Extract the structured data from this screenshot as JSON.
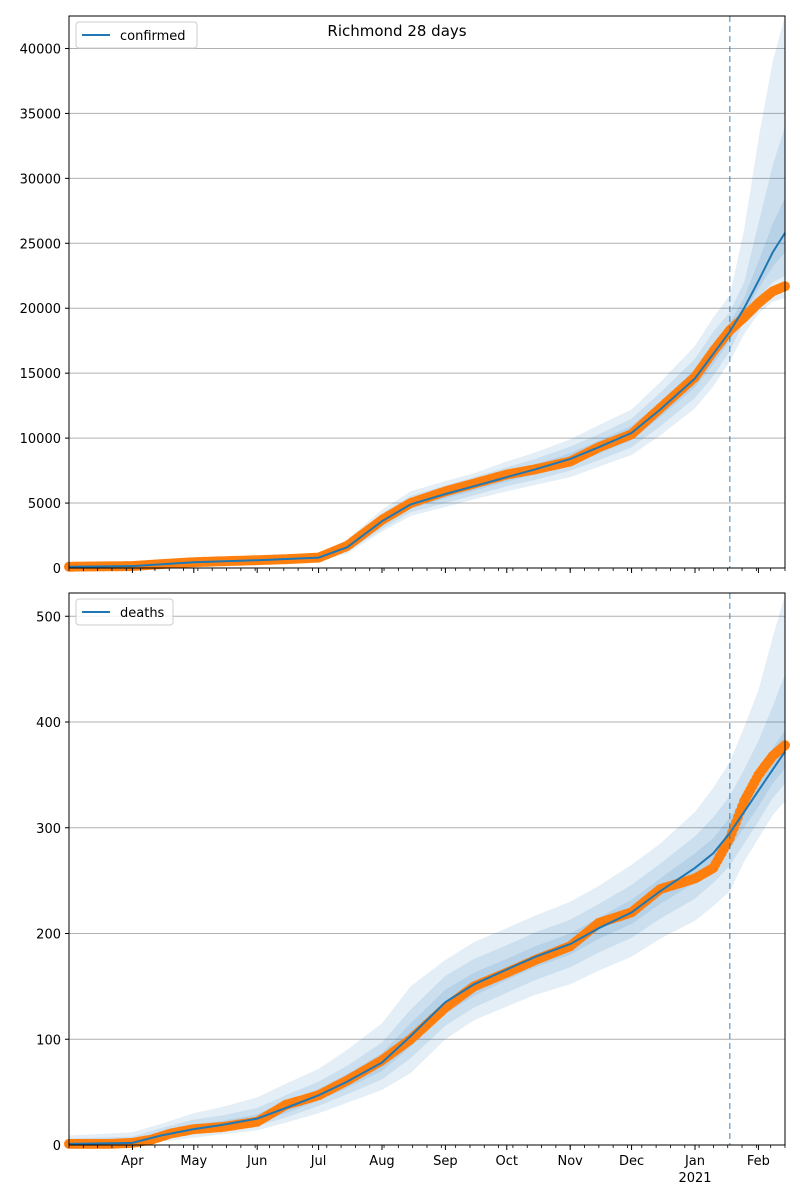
{
  "title": "Richmond 28 days",
  "colors": {
    "model_line": "#1f77b4",
    "observed": "#ff7f0e",
    "band": "#1f77b4",
    "grid": "#b0b0b0",
    "forecast_marker": "#1f77b4"
  },
  "x_axis": {
    "start": "2020-03-01",
    "end": "2021-02-14",
    "tick_labels": [
      {
        "date": "2020-04-01",
        "label": "Apr"
      },
      {
        "date": "2020-05-01",
        "label": "May"
      },
      {
        "date": "2020-06-01",
        "label": "Jun"
      },
      {
        "date": "2020-07-01",
        "label": "Jul"
      },
      {
        "date": "2020-08-01",
        "label": "Aug"
      },
      {
        "date": "2020-09-01",
        "label": "Sep"
      },
      {
        "date": "2020-10-01",
        "label": "Oct"
      },
      {
        "date": "2020-11-01",
        "label": "Nov"
      },
      {
        "date": "2020-12-01",
        "label": "Dec"
      },
      {
        "date": "2021-01-01",
        "label": "Jan"
      },
      {
        "date": "2021-02-01",
        "label": "Feb"
      }
    ],
    "year_label": {
      "date": "2021-01-01",
      "label": "2021"
    },
    "forecast_start": "2021-01-18"
  },
  "chart_data": [
    {
      "type": "line",
      "legend": {
        "label": "confirmed",
        "position": "upper-left"
      },
      "grid": true,
      "ylim": [
        0,
        42500
      ],
      "yticks": [
        0,
        5000,
        10000,
        15000,
        20000,
        25000,
        30000,
        35000,
        40000
      ],
      "observed": {
        "x": [
          "2020-03-01",
          "2020-03-15",
          "2020-04-01",
          "2020-04-15",
          "2020-05-01",
          "2020-05-15",
          "2020-06-01",
          "2020-06-15",
          "2020-07-01",
          "2020-07-15",
          "2020-08-01",
          "2020-08-15",
          "2020-09-01",
          "2020-09-15",
          "2020-10-01",
          "2020-10-15",
          "2020-11-01",
          "2020-11-15",
          "2020-12-01",
          "2020-12-15",
          "2021-01-01",
          "2021-01-10",
          "2021-01-18",
          "2021-01-25",
          "2021-02-01",
          "2021-02-08",
          "2021-02-14"
        ],
        "y": [
          100,
          120,
          150,
          300,
          450,
          520,
          600,
          680,
          800,
          1700,
          3700,
          5000,
          5900,
          6500,
          7200,
          7600,
          8200,
          9300,
          10300,
          12300,
          14700,
          16700,
          18300,
          19300,
          20400,
          21300,
          21700
        ]
      },
      "model": {
        "x": [
          "2020-03-01",
          "2020-04-01",
          "2020-05-01",
          "2020-06-01",
          "2020-07-01",
          "2020-07-15",
          "2020-08-01",
          "2020-08-15",
          "2020-09-01",
          "2020-09-15",
          "2020-10-01",
          "2020-10-15",
          "2020-11-01",
          "2020-11-15",
          "2020-12-01",
          "2020-12-15",
          "2021-01-01",
          "2021-01-10",
          "2021-01-18",
          "2021-01-25",
          "2021-02-01",
          "2021-02-08",
          "2021-02-14"
        ],
        "y": [
          100,
          150,
          450,
          600,
          800,
          1600,
          3600,
          4900,
          5700,
          6300,
          7000,
          7600,
          8400,
          9300,
          10400,
          12200,
          14600,
          16500,
          18200,
          20000,
          22100,
          24300,
          25800
        ]
      },
      "bands": [
        {
          "level": "outer",
          "lower": [
            0,
            0,
            300,
            450,
            600,
            1100,
            2800,
            4000,
            4700,
            5300,
            5900,
            6400,
            7000,
            7800,
            8700,
            10200,
            12300,
            14000,
            15900,
            18000,
            19600,
            20500,
            20800
          ],
          "upper": [
            250,
            350,
            700,
            850,
            1100,
            2200,
            4500,
            5900,
            6700,
            7300,
            8200,
            8900,
            9900,
            11000,
            12200,
            14300,
            17100,
            19300,
            21000,
            26000,
            33000,
            39000,
            42500
          ]
        },
        {
          "level": "middle",
          "lower": [
            50,
            50,
            350,
            500,
            650,
            1250,
            3000,
            4300,
            5000,
            5600,
            6300,
            6800,
            7500,
            8300,
            9300,
            10900,
            13100,
            14800,
            16700,
            19000,
            20800,
            22000,
            22500
          ],
          "upper": [
            180,
            260,
            600,
            750,
            980,
            1950,
            4200,
            5550,
            6350,
            7000,
            7750,
            8400,
            9350,
            10300,
            11500,
            13500,
            16100,
            18200,
            19700,
            22000,
            26500,
            31000,
            34000
          ]
        },
        {
          "level": "inner",
          "lower": [
            80,
            100,
            400,
            550,
            720,
            1400,
            3250,
            4600,
            5350,
            5950,
            6650,
            7200,
            7950,
            8800,
            9850,
            11600,
            13900,
            15700,
            17500,
            19500,
            21500,
            23200,
            24300
          ],
          "upper": [
            130,
            200,
            500,
            650,
            880,
            1800,
            3950,
            5200,
            6050,
            6650,
            7350,
            8000,
            8850,
            9800,
            10950,
            12800,
            15300,
            17300,
            18900,
            20800,
            23600,
            26500,
            28500
          ]
        }
      ]
    },
    {
      "type": "line",
      "legend": {
        "label": "deaths",
        "position": "upper-left"
      },
      "grid": true,
      "ylim": [
        0,
        522
      ],
      "yticks": [
        0,
        100,
        200,
        300,
        400,
        500
      ],
      "observed": {
        "x": [
          "2020-03-01",
          "2020-03-20",
          "2020-04-01",
          "2020-04-10",
          "2020-04-20",
          "2020-05-01",
          "2020-05-15",
          "2020-06-01",
          "2020-06-15",
          "2020-07-01",
          "2020-07-15",
          "2020-08-01",
          "2020-08-15",
          "2020-09-01",
          "2020-09-15",
          "2020-10-01",
          "2020-10-15",
          "2020-11-01",
          "2020-11-15",
          "2020-12-01",
          "2020-12-15",
          "2021-01-01",
          "2021-01-10",
          "2021-01-18",
          "2021-01-25",
          "2021-02-01",
          "2021-02-08",
          "2021-02-14"
        ],
        "y": [
          1,
          1,
          2,
          5,
          11,
          15,
          17,
          22,
          38,
          47,
          61,
          80,
          100,
          130,
          150,
          163,
          175,
          188,
          210,
          220,
          242,
          252,
          262,
          290,
          325,
          350,
          368,
          378
        ]
      },
      "model": {
        "x": [
          "2020-03-01",
          "2020-04-01",
          "2020-04-15",
          "2020-05-01",
          "2020-05-15",
          "2020-06-01",
          "2020-06-15",
          "2020-07-01",
          "2020-07-15",
          "2020-08-01",
          "2020-08-15",
          "2020-09-01",
          "2020-09-15",
          "2020-10-01",
          "2020-10-15",
          "2020-11-01",
          "2020-11-15",
          "2020-12-01",
          "2020-12-15",
          "2021-01-01",
          "2021-01-10",
          "2021-01-18",
          "2021-01-25",
          "2021-02-01",
          "2021-02-08",
          "2021-02-14"
        ],
        "y": [
          1,
          2,
          9,
          15,
          19,
          25,
          35,
          47,
          60,
          78,
          103,
          135,
          152,
          166,
          178,
          190,
          205,
          220,
          240,
          262,
          276,
          295,
          315,
          335,
          355,
          372
        ]
      },
      "bands": [
        {
          "level": "outer",
          "lower": [
            0,
            0,
            3,
            7,
            10,
            14,
            21,
            30,
            40,
            52,
            68,
            100,
            118,
            131,
            142,
            152,
            165,
            178,
            195,
            212,
            226,
            240,
            268,
            290,
            312,
            325
          ],
          "upper": [
            9,
            12,
            20,
            30,
            36,
            45,
            58,
            72,
            90,
            115,
            150,
            175,
            192,
            205,
            217,
            230,
            245,
            265,
            285,
            315,
            338,
            362,
            395,
            430,
            480,
            520
          ]
        },
        {
          "level": "middle",
          "lower": [
            0,
            0,
            5,
            10,
            13,
            18,
            26,
            37,
            48,
            62,
            82,
            113,
            130,
            144,
            156,
            168,
            182,
            196,
            214,
            233,
            248,
            264,
            285,
            306,
            328,
            342
          ],
          "upper": [
            6,
            8,
            16,
            24,
            28,
            35,
            47,
            60,
            75,
            97,
            128,
            160,
            176,
            189,
            201,
            213,
            228,
            246,
            266,
            292,
            310,
            330,
            355,
            382,
            415,
            445
          ]
        },
        {
          "level": "inner",
          "lower": [
            0,
            1,
            7,
            12,
            16,
            21,
            30,
            42,
            54,
            70,
            93,
            124,
            141,
            156,
            168,
            180,
            195,
            209,
            228,
            248,
            263,
            280,
            300,
            320,
            342,
            356
          ],
          "upper": [
            3,
            5,
            12,
            19,
            23,
            29,
            41,
            53,
            67,
            87,
            115,
            147,
            163,
            176,
            188,
            200,
            215,
            232,
            252,
            276,
            290,
            310,
            330,
            352,
            375,
            392
          ]
        }
      ]
    }
  ]
}
